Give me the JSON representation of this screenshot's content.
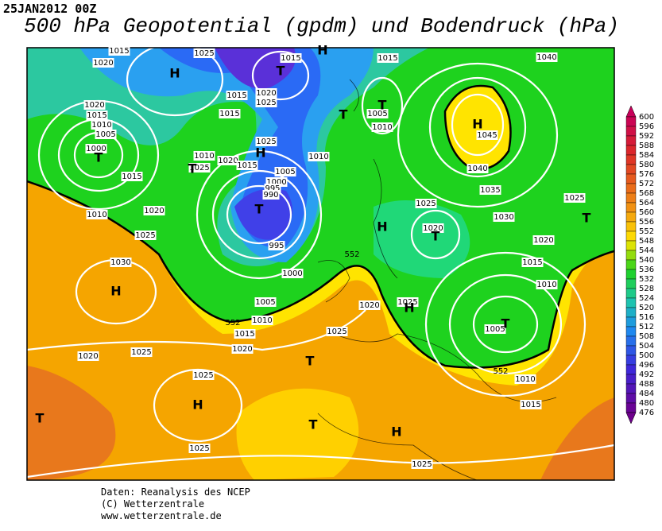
{
  "header": {
    "date": "25JAN2012 00Z",
    "title": "500 hPa Geopotential (gpdm) und Bodendruck (hPa)"
  },
  "map": {
    "pressure_labels": [
      1015,
      1020,
      1025,
      1015,
      1015,
      1040,
      1020,
      1015,
      1010,
      1005,
      1000,
      1015,
      1020,
      1025,
      1015,
      1005,
      1010,
      1045,
      1025,
      1010,
      1020,
      1025,
      1015,
      1010,
      1005,
      1040,
      1015,
      1000,
      995,
      990,
      1035,
      1025,
      1025,
      1010,
      1020,
      1030,
      1025,
      1020,
      995,
      1020,
      1015,
      1030,
      1000,
      1010,
      1005,
      1020,
      1025,
      1010,
      1015,
      1025,
      1005,
      1020,
      1025,
      1020,
      1025,
      1010,
      1015,
      1025,
      1025
    ],
    "contour_labels": [
      552,
      552,
      552
    ],
    "centers": [
      "H",
      "H",
      "T",
      "T",
      "T",
      "H",
      "T",
      "T",
      "H",
      "T",
      "H",
      "T",
      "T",
      "H",
      "H",
      "T",
      "T",
      "H",
      "T",
      "T",
      "H"
    ]
  },
  "colorbar": {
    "levels": [
      600,
      596,
      592,
      588,
      584,
      580,
      576,
      572,
      568,
      564,
      560,
      556,
      552,
      548,
      544,
      540,
      536,
      532,
      528,
      524,
      520,
      516,
      512,
      508,
      504,
      500,
      496,
      492,
      488,
      484,
      480,
      476
    ]
  },
  "footer": {
    "lines": [
      "Daten: Reanalysis des NCEP",
      "(C) Wetterzentrale",
      "www.wetterzentrale.de"
    ]
  }
}
